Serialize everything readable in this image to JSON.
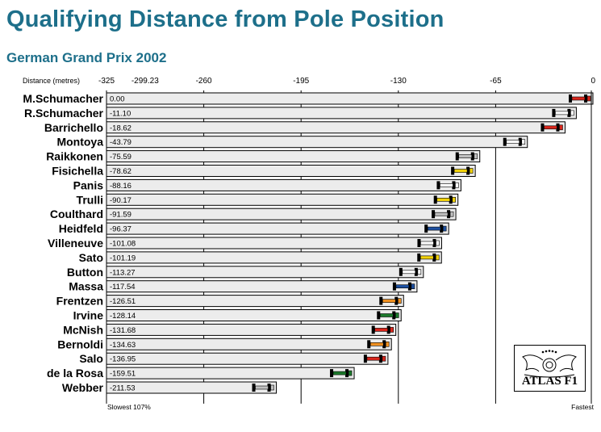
{
  "title": "Qualifying Distance from Pole Position",
  "subtitle": "German Grand Prix 2002",
  "logo_text": "ATLAS F1",
  "chart_data": {
    "type": "bar",
    "orientation": "horizontal",
    "title": "Qualifying Distance from Pole Position",
    "subtitle": "German Grand Prix 2002",
    "xlabel": "Distance (metres)",
    "xlim": [
      -325,
      0
    ],
    "x_ticks": [
      -325,
      -299.23,
      -260,
      -195,
      -130,
      -65,
      0
    ],
    "x_tick_labels": [
      "-325",
      "-299.23",
      "-260",
      "-195",
      "-130",
      "-65",
      "0"
    ],
    "gridlines_x": [
      -260,
      -195,
      -130,
      -65
    ],
    "categories": [
      "M.Schumacher",
      "R.Schumacher",
      "Barrichello",
      "Montoya",
      "Raikkonen",
      "Fisichella",
      "Panis",
      "Trulli",
      "Coulthard",
      "Heidfeld",
      "Villeneuve",
      "Sato",
      "Button",
      "Massa",
      "Frentzen",
      "Irvine",
      "McNish",
      "Bernoldi",
      "Salo",
      "de la Rosa",
      "Webber"
    ],
    "values": [
      0.0,
      -11.1,
      -18.62,
      -43.79,
      -75.59,
      -78.62,
      -88.16,
      -90.17,
      -91.59,
      -96.37,
      -101.08,
      -101.19,
      -113.27,
      -117.54,
      -126.51,
      -128.14,
      -131.68,
      -134.63,
      -136.95,
      -159.51,
      -211.53
    ],
    "value_labels": [
      "0.00",
      "-11.10",
      "-18.62",
      "-43.79",
      "-75.59",
      "-78.62",
      "-88.16",
      "-90.17",
      "-91.59",
      "-96.37",
      "-101.08",
      "-101.19",
      "-113.27",
      "-117.54",
      "-126.51",
      "-128.14",
      "-131.68",
      "-134.63",
      "-136.95",
      "-159.51",
      "-211.53"
    ],
    "car_colors": [
      "#d9261c",
      "#ffffff",
      "#d9261c",
      "#ffffff",
      "#c0c0c0",
      "#f2d20a",
      "#ffffff",
      "#f2d20a",
      "#c0c0c0",
      "#1c4fa0",
      "#ffffff",
      "#f2d20a",
      "#ffffff",
      "#1c4fa0",
      "#f09020",
      "#1c7a2c",
      "#d9261c",
      "#f09020",
      "#d9261c",
      "#1c7a2c",
      "#c0c0c0"
    ],
    "left_annotation": "Slowest  107%",
    "right_annotation": "Fastest",
    "bar_color": "#ececec"
  }
}
